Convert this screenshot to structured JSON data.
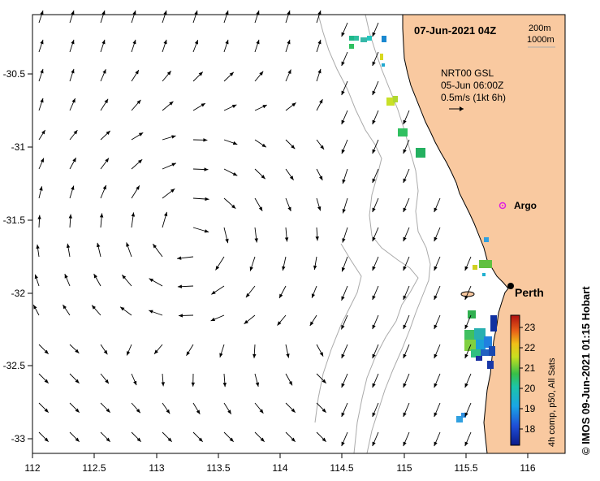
{
  "title": "07-Jun-2021 04Z",
  "bathymetry_legend": [
    "200m",
    "1000m"
  ],
  "current_source": {
    "line1": "NRT00 GSL",
    "line2": "05-Jun 06:00Z",
    "scale": "0.5m/s (1kt 6h)"
  },
  "argo_label": "Argo",
  "city_label": "Perth",
  "credit": "© IMOS 09-Jun-2021 01:15 Hobart",
  "colorbar": {
    "label": "4h comp, p50, All Sats",
    "min": 17.5,
    "max": 23.5,
    "ticks": [
      "18",
      "19",
      "20",
      "21",
      "22",
      "23"
    ]
  },
  "axes": {
    "x_ticks": [
      "112",
      "112.5",
      "113",
      "113.5",
      "114",
      "114.5",
      "115",
      "115.5",
      "116"
    ],
    "y_ticks": [
      "-30.5",
      "-31",
      "-31.5",
      "-32",
      "-32.5",
      "-33"
    ],
    "lon_range": [
      112,
      116.3
    ],
    "lat_range": [
      -33.1,
      -30.1
    ]
  },
  "colors": {
    "land": "#f9c9a0",
    "coast": "#000000",
    "isobath": "#aaaaaa"
  }
}
